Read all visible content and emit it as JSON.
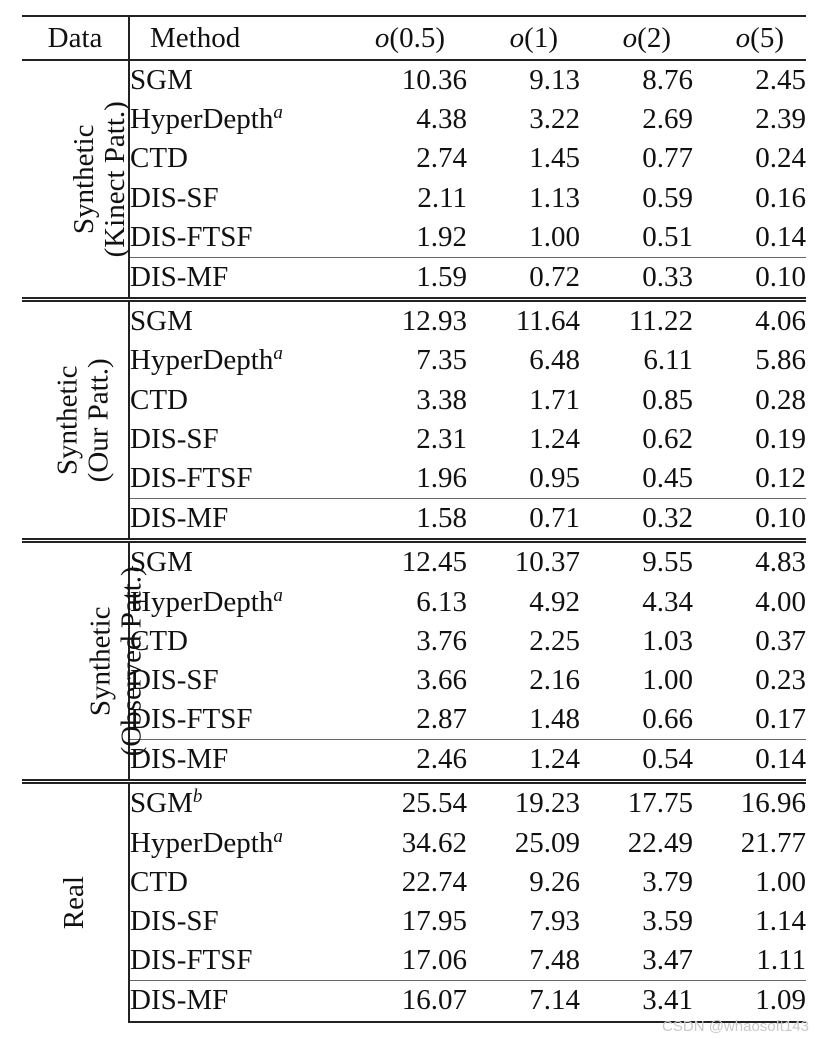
{
  "header": {
    "data": "Data",
    "method": "Method",
    "metrics": [
      {
        "name": "o",
        "arg": "(0.5)"
      },
      {
        "name": "o",
        "arg": "(1)"
      },
      {
        "name": "o",
        "arg": "(2)"
      },
      {
        "name": "o",
        "arg": "(5)"
      }
    ]
  },
  "groups": [
    {
      "label": [
        "Synthetic",
        "(Kinect Patt.)"
      ],
      "rows": [
        {
          "method": "SGM",
          "sup": "",
          "values": [
            "10.36",
            "9.13",
            "8.76",
            "2.45"
          ],
          "bold": [
            false,
            false,
            false,
            false
          ]
        },
        {
          "method": "HyperDepth",
          "sup": "a",
          "values": [
            "4.38",
            "3.22",
            "2.69",
            "2.39"
          ],
          "bold": [
            false,
            false,
            false,
            false
          ]
        },
        {
          "method": "CTD",
          "sup": "",
          "values": [
            "2.74",
            "1.45",
            "0.77",
            "0.24"
          ],
          "bold": [
            false,
            false,
            false,
            false
          ]
        },
        {
          "method": "DIS-SF",
          "sup": "",
          "values": [
            "2.11",
            "1.13",
            "0.59",
            "0.16"
          ],
          "bold": [
            false,
            false,
            false,
            false
          ]
        },
        {
          "method": "DIS-FTSF",
          "sup": "",
          "values": [
            "1.92",
            "1.00",
            "0.51",
            "0.14"
          ],
          "bold": [
            true,
            true,
            true,
            true
          ]
        },
        {
          "method": "DIS-MF",
          "sup": "",
          "values": [
            "1.59",
            "0.72",
            "0.33",
            "0.10"
          ],
          "bold": [
            false,
            false,
            false,
            false
          ]
        }
      ]
    },
    {
      "label": [
        "Synthetic",
        "(Our Patt.)"
      ],
      "rows": [
        {
          "method": "SGM",
          "sup": "",
          "values": [
            "12.93",
            "11.64",
            "11.22",
            "4.06"
          ],
          "bold": [
            false,
            false,
            false,
            false
          ]
        },
        {
          "method": "HyperDepth",
          "sup": "a",
          "values": [
            "7.35",
            "6.48",
            "6.11",
            "5.86"
          ],
          "bold": [
            false,
            false,
            false,
            false
          ]
        },
        {
          "method": "CTD",
          "sup": "",
          "values": [
            "3.38",
            "1.71",
            "0.85",
            "0.28"
          ],
          "bold": [
            false,
            false,
            false,
            false
          ]
        },
        {
          "method": "DIS-SF",
          "sup": "",
          "values": [
            "2.31",
            "1.24",
            "0.62",
            "0.19"
          ],
          "bold": [
            false,
            false,
            false,
            false
          ]
        },
        {
          "method": "DIS-FTSF",
          "sup": "",
          "values": [
            "1.96",
            "0.95",
            "0.45",
            "0.12"
          ],
          "bold": [
            true,
            true,
            true,
            true
          ]
        },
        {
          "method": "DIS-MF",
          "sup": "",
          "values": [
            "1.58",
            "0.71",
            "0.32",
            "0.10"
          ],
          "bold": [
            false,
            false,
            false,
            false
          ]
        }
      ]
    },
    {
      "label": [
        "Synthetic",
        "(Observed Patt.)"
      ],
      "rows": [
        {
          "method": "SGM",
          "sup": "",
          "values": [
            "12.45",
            "10.37",
            "9.55",
            "4.83"
          ],
          "bold": [
            false,
            false,
            false,
            false
          ]
        },
        {
          "method": "HyperDepth",
          "sup": "a",
          "values": [
            "6.13",
            "4.92",
            "4.34",
            "4.00"
          ],
          "bold": [
            false,
            false,
            false,
            false
          ]
        },
        {
          "method": "CTD",
          "sup": "",
          "values": [
            "3.76",
            "2.25",
            "1.03",
            "0.37"
          ],
          "bold": [
            false,
            false,
            false,
            false
          ]
        },
        {
          "method": "DIS-SF",
          "sup": "",
          "values": [
            "3.66",
            "2.16",
            "1.00",
            "0.23"
          ],
          "bold": [
            false,
            false,
            false,
            false
          ]
        },
        {
          "method": "DIS-FTSF",
          "sup": "",
          "values": [
            "2.87",
            "1.48",
            "0.66",
            "0.17"
          ],
          "bold": [
            true,
            true,
            true,
            true
          ]
        },
        {
          "method": "DIS-MF",
          "sup": "",
          "values": [
            "2.46",
            "1.24",
            "0.54",
            "0.14"
          ],
          "bold": [
            false,
            false,
            false,
            false
          ]
        }
      ]
    },
    {
      "label": [
        "Real"
      ],
      "rows": [
        {
          "method": "SGM",
          "sup": "b",
          "values": [
            "25.54",
            "19.23",
            "17.75",
            "16.96"
          ],
          "bold": [
            false,
            false,
            false,
            false
          ]
        },
        {
          "method": "HyperDepth",
          "sup": "a",
          "values": [
            "34.62",
            "25.09",
            "22.49",
            "21.77"
          ],
          "bold": [
            false,
            false,
            false,
            false
          ]
        },
        {
          "method": "CTD",
          "sup": "",
          "values": [
            "22.74",
            "9.26",
            "3.79",
            "1.00"
          ],
          "bold": [
            false,
            false,
            false,
            true
          ]
        },
        {
          "method": "DIS-SF",
          "sup": "",
          "values": [
            "17.95",
            "7.93",
            "3.59",
            "1.14"
          ],
          "bold": [
            false,
            false,
            false,
            false
          ]
        },
        {
          "method": "DIS-FTSF",
          "sup": "",
          "values": [
            "17.06",
            "7.48",
            "3.47",
            "1.11"
          ],
          "bold": [
            true,
            true,
            true,
            false
          ]
        },
        {
          "method": "DIS-MF",
          "sup": "",
          "values": [
            "16.07",
            "7.14",
            "3.41",
            "1.09"
          ],
          "bold": [
            false,
            false,
            false,
            false
          ]
        }
      ]
    }
  ],
  "watermark": "CSDN @whaosoft143"
}
